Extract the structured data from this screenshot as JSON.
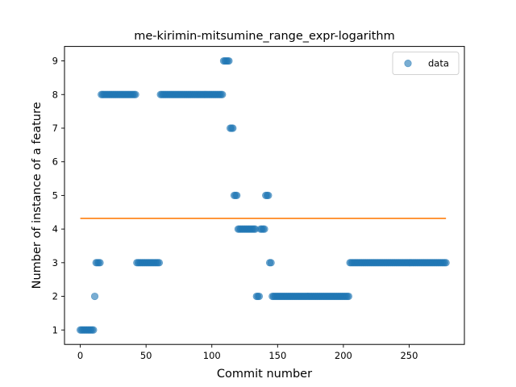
{
  "chart_data": {
    "type": "scatter",
    "title": "me-kirimin-mitsumine_range_expr-logarithm",
    "xlabel": "Commit number",
    "ylabel": "Number of instance of a feature",
    "xlim": [
      -12,
      292
    ],
    "ylim": [
      0.57,
      9.43
    ],
    "xticks": [
      0,
      50,
      100,
      150,
      200,
      250
    ],
    "yticks": [
      1,
      2,
      3,
      4,
      5,
      6,
      7,
      8,
      9
    ],
    "grid": false,
    "legend": {
      "placement": "top-right",
      "entries": [
        "data"
      ]
    },
    "colors": {
      "scatter": "#1f77b4",
      "line": "#ff7f0e"
    },
    "runs": [
      {
        "from": 0,
        "to": 10,
        "value": 1
      },
      {
        "from": 11,
        "to": 11,
        "value": 2
      },
      {
        "from": 12,
        "to": 15,
        "value": 3
      },
      {
        "from": 16,
        "to": 42,
        "value": 8
      },
      {
        "from": 43,
        "to": 60,
        "value": 3
      },
      {
        "from": 61,
        "to": 108,
        "value": 8
      },
      {
        "from": 109,
        "to": 113,
        "value": 9
      },
      {
        "from": 114,
        "to": 116,
        "value": 7
      },
      {
        "from": 117,
        "to": 119,
        "value": 5
      },
      {
        "from": 120,
        "to": 133,
        "value": 4
      },
      {
        "from": 134,
        "to": 136,
        "value": 2
      },
      {
        "from": 137,
        "to": 140,
        "value": 4
      },
      {
        "from": 141,
        "to": 143,
        "value": 5
      },
      {
        "from": 144,
        "to": 145,
        "value": 3
      },
      {
        "from": 146,
        "to": 204,
        "value": 2
      },
      {
        "from": 205,
        "to": 278,
        "value": 3
      }
    ],
    "series": [
      {
        "name": "data",
        "kind": "scatter"
      },
      {
        "kind": "line",
        "x": [
          0,
          278
        ],
        "y": [
          4.32,
          4.32
        ]
      }
    ]
  }
}
